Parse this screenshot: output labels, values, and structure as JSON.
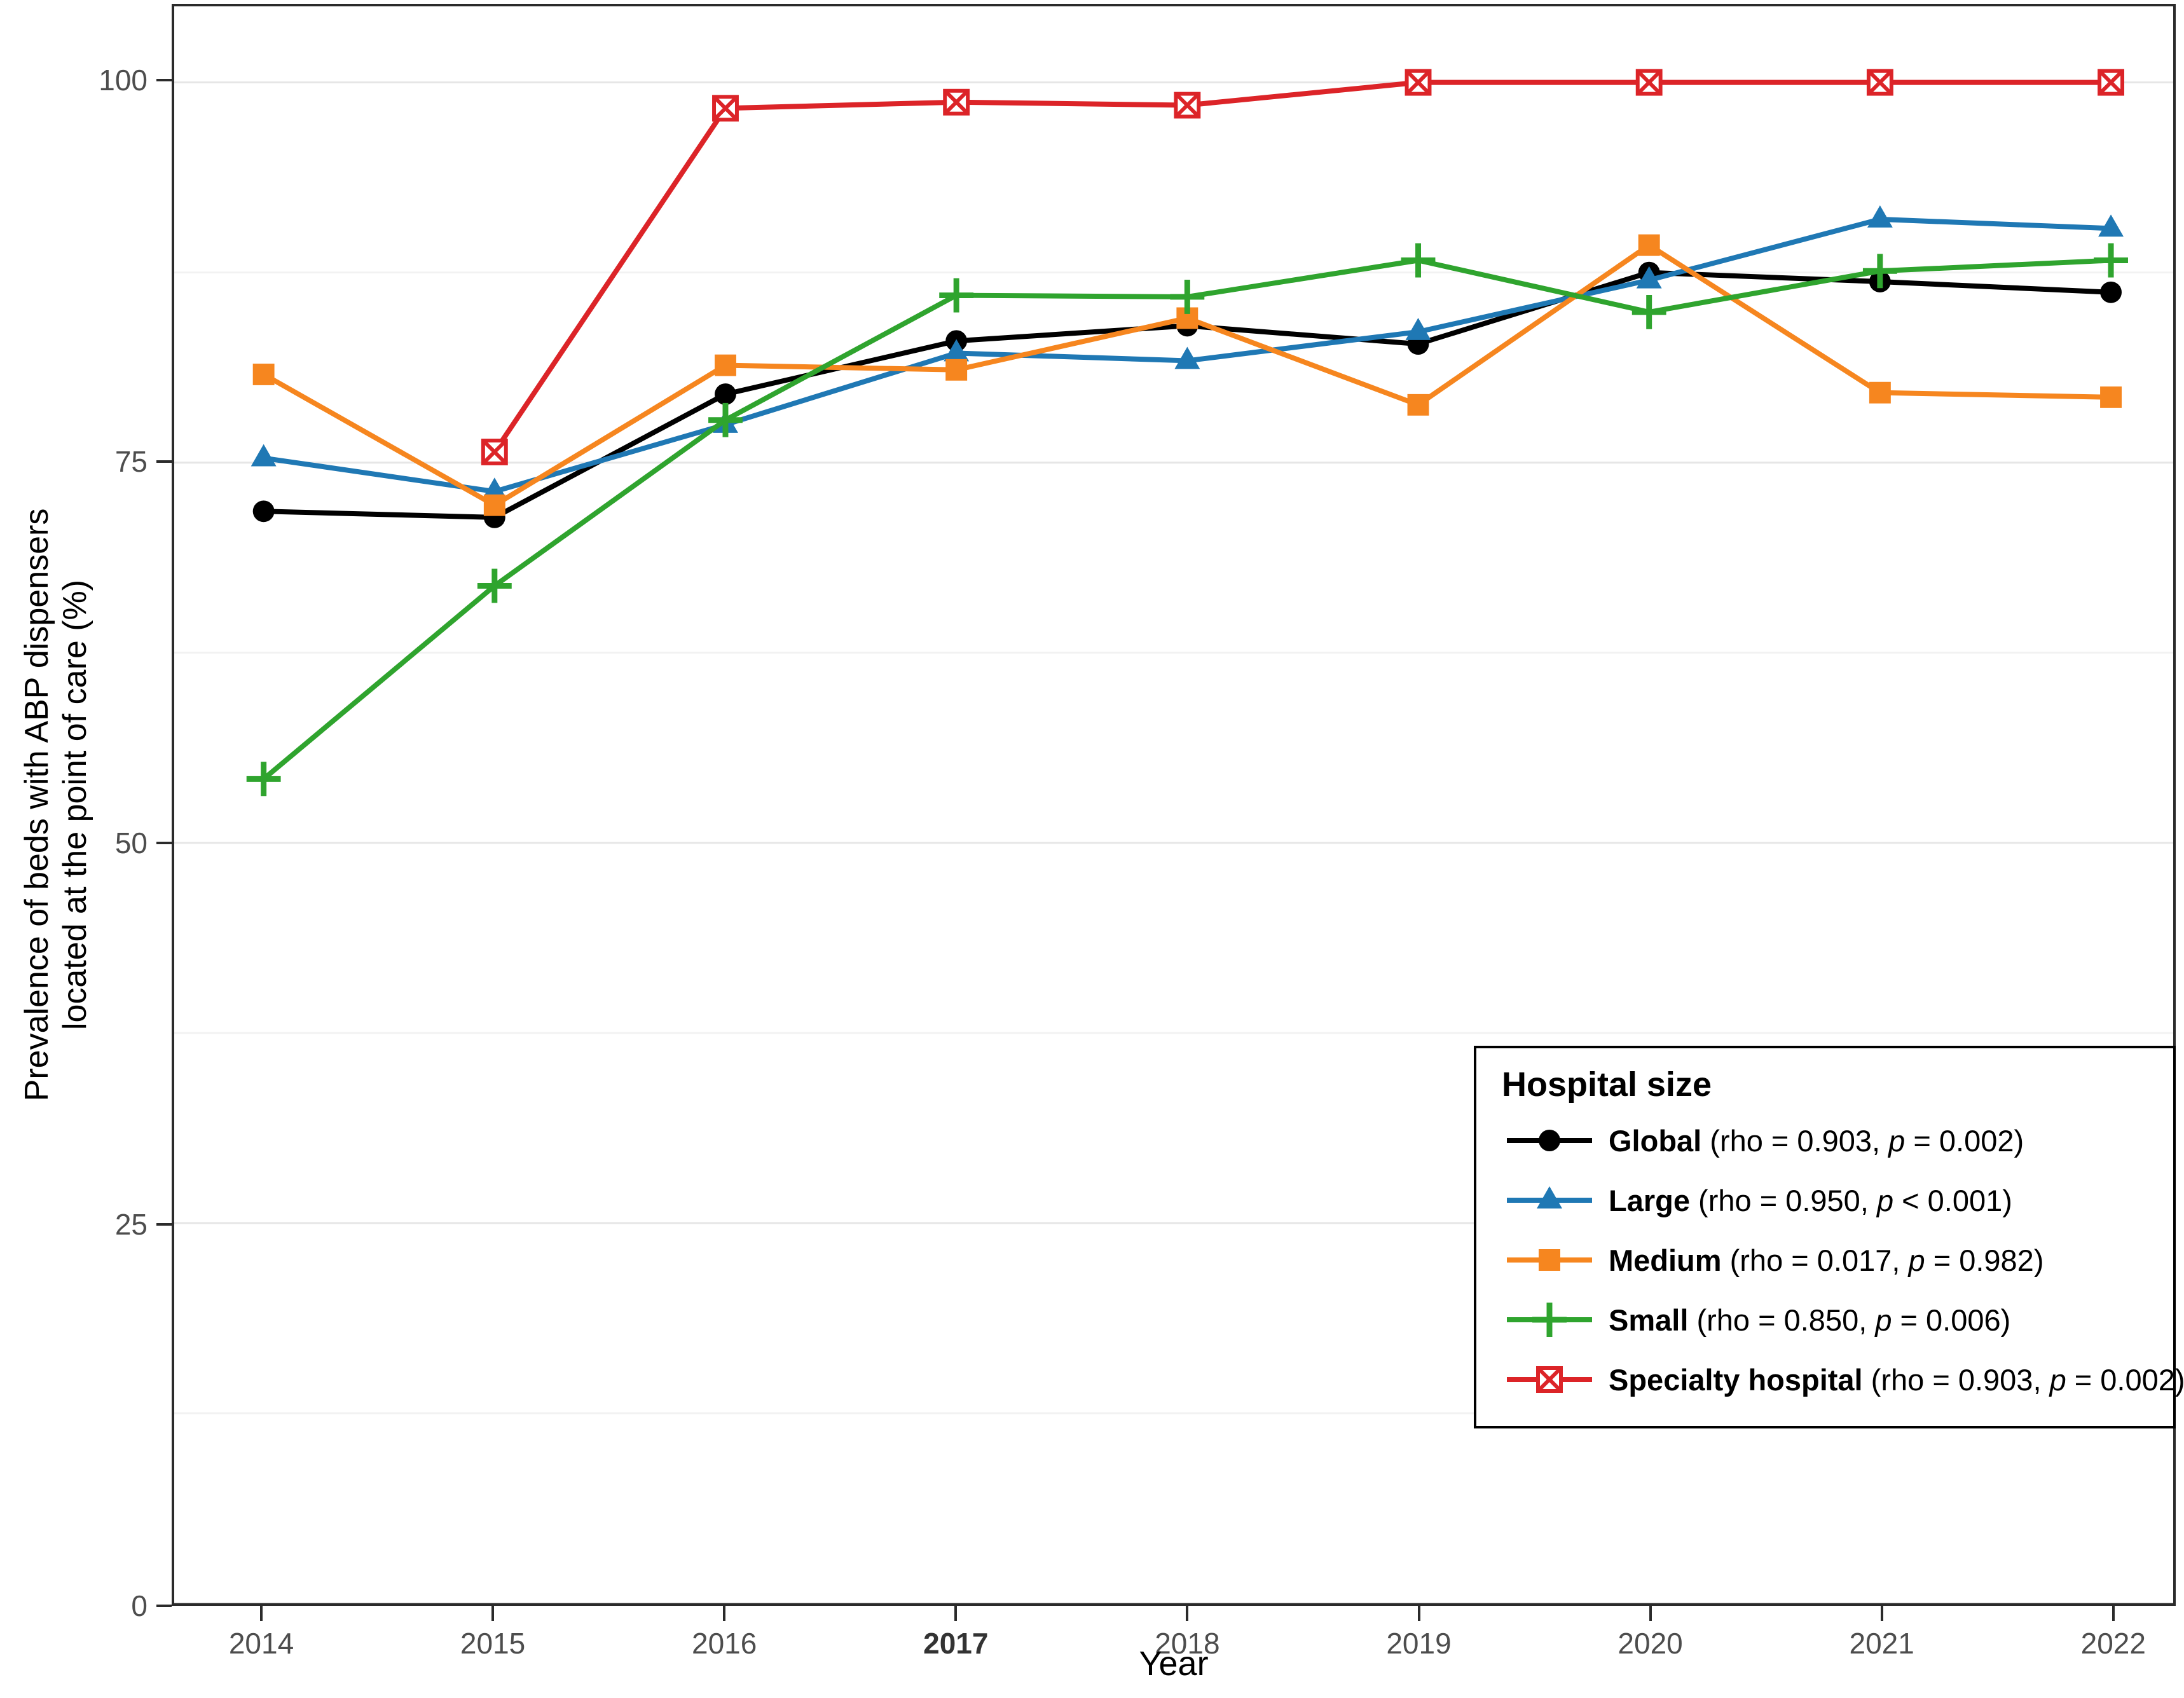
{
  "figure": {
    "x_axis_title": "Year",
    "y_axis_title_line1": "Prevalence of beds with ABP dispensers",
    "y_axis_title_line2": "located at the point of care (%)"
  },
  "legend": {
    "title": "Hospital size"
  },
  "chart_data": {
    "type": "line",
    "title": "",
    "xlabel": "Year",
    "ylabel": "Prevalence of beds with ABP dispensers located at the point of care (%)",
    "categories": [
      "2014",
      "2015",
      "2016",
      "2017",
      "2018",
      "2019",
      "2020",
      "2021",
      "2022"
    ],
    "bold_x_tick": "2017",
    "y_ticks": [
      0,
      25,
      50,
      75,
      100
    ],
    "y_minor_ticks": [
      12.5,
      37.5,
      62.5,
      87.5
    ],
    "ylim": [
      0,
      100
    ],
    "y_top_expand": 5,
    "grid": true,
    "legend_position": "bottom-right",
    "colors": {
      "major_grid": "#e6e6e6",
      "minor_grid": "#f2f2f2",
      "axis_text": "#4d4d4d",
      "border": "#2b2b2b"
    },
    "series": [
      {
        "name": "Global",
        "marker": "circle",
        "color": "#000000",
        "legend_rho": "(rho = 0.903, ",
        "legend_p_symbol": "p",
        "legend_p_rest": " = 0.002)",
        "values": [
          71.8,
          71.4,
          79.5,
          83.0,
          84.0,
          82.8,
          87.5,
          86.9,
          86.2
        ]
      },
      {
        "name": "Large",
        "marker": "triangle",
        "color": "#1f78b4",
        "legend_rho": "(rho = 0.950, ",
        "legend_p_symbol": "p",
        "legend_p_rest": " < 0.001)",
        "values": [
          75.3,
          73.1,
          77.5,
          82.2,
          81.7,
          83.6,
          87.0,
          91.0,
          90.4
        ]
      },
      {
        "name": "Medium",
        "marker": "square",
        "color": "#f6861f",
        "legend_rho": "(rho = 0.017, ",
        "legend_p_symbol": "p",
        "legend_p_rest": " = 0.982)",
        "values": [
          80.8,
          72.2,
          81.4,
          81.1,
          84.5,
          78.8,
          89.3,
          79.6,
          79.3
        ]
      },
      {
        "name": "Small",
        "marker": "plus",
        "color": "#2fa42e",
        "legend_rho": "(rho = 0.850, ",
        "legend_p_symbol": "p",
        "legend_p_rest": " = 0.006)",
        "values": [
          54.2,
          66.9,
          77.8,
          86.0,
          85.9,
          88.3,
          84.9,
          87.6,
          88.3
        ]
      },
      {
        "name": "Specialty hospital",
        "marker": "square-x",
        "color": "#dc2428",
        "legend_rho": "(rho = 0.903, ",
        "legend_p_symbol": "p",
        "legend_p_rest": " = 0.002)",
        "values": [
          null,
          75.7,
          98.3,
          98.7,
          98.5,
          100,
          100,
          100,
          100
        ]
      }
    ]
  }
}
